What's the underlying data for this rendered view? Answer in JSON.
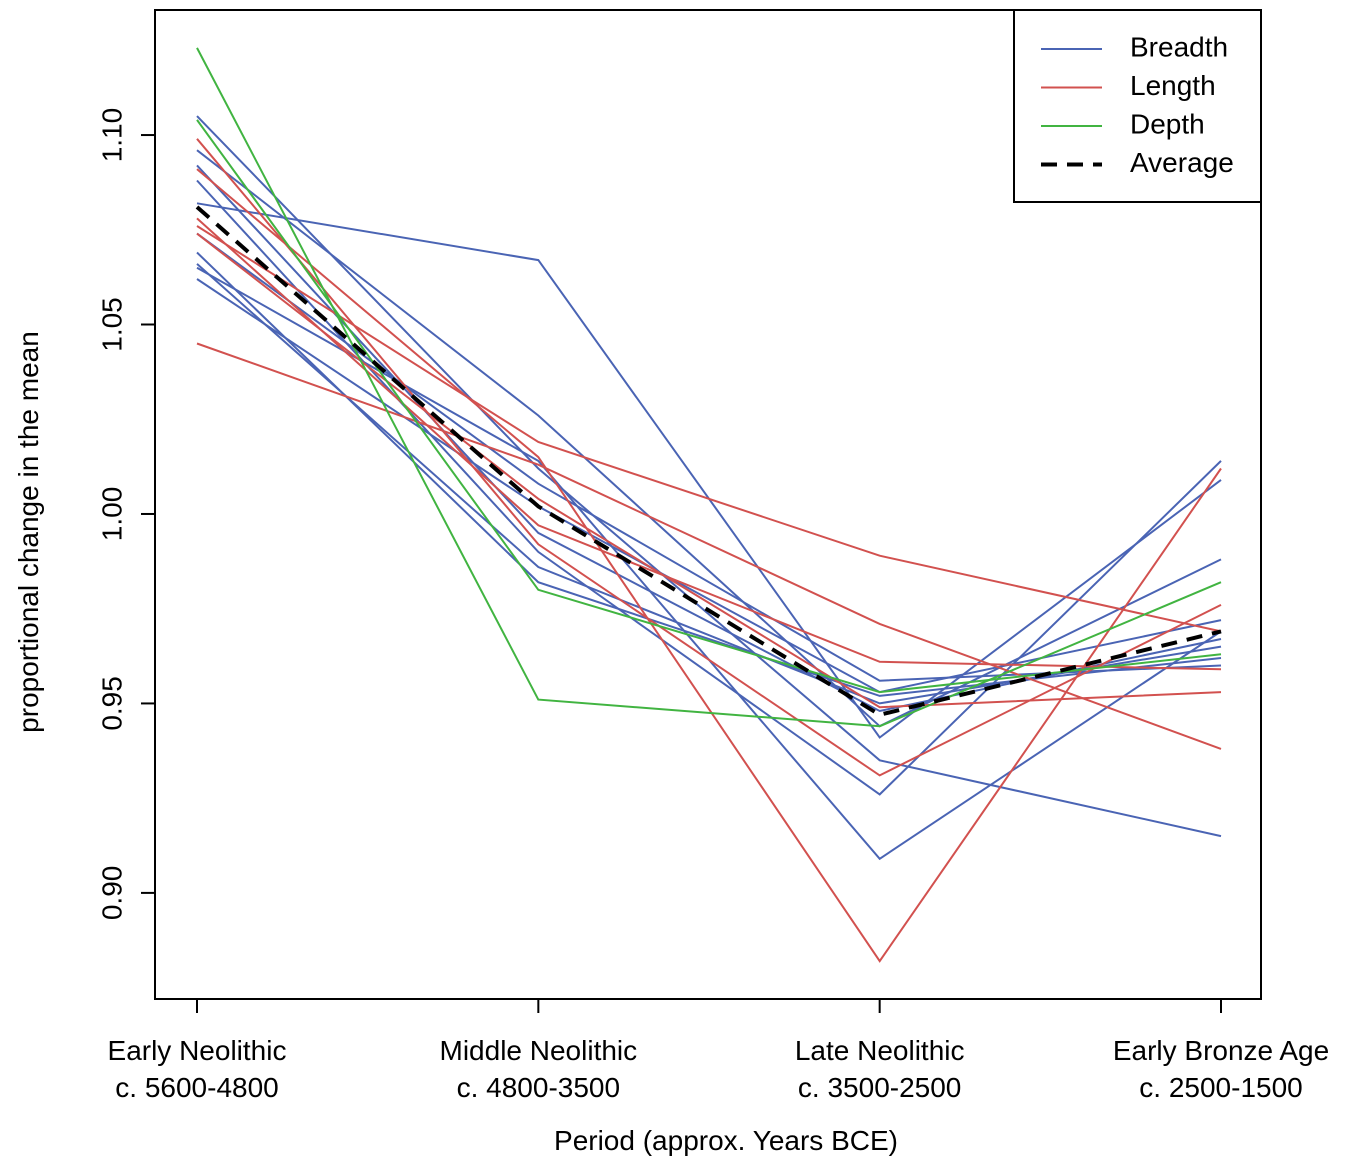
{
  "chart_data": {
    "type": "line",
    "title": "",
    "xlabel": "Period (approx. Years BCE)",
    "ylabel": "proportional change in the mean",
    "categories": [
      [
        "Early Neolithic",
        "c. 5600-4800"
      ],
      [
        "Middle Neolithic",
        "c. 4800-3500"
      ],
      [
        "Late Neolithic",
        "c. 3500-2500"
      ],
      [
        "Early Bronze Age",
        "c. 2500-1500"
      ]
    ],
    "ylim": [
      0.872,
      1.133
    ],
    "yticks": [
      0.9,
      0.95,
      1.0,
      1.05,
      1.1
    ],
    "ytick_labels": [
      "0.90",
      "0.95",
      "1.00",
      "1.05",
      "1.10"
    ],
    "grid": false,
    "legend_position": "top-right",
    "colors": {
      "Breadth": "#4a64b4",
      "Length": "#d2514f",
      "Depth": "#41b441",
      "Average": "#000000"
    },
    "legend": [
      {
        "label": "Breadth",
        "group": "Breadth",
        "dashed": false
      },
      {
        "label": "Length",
        "group": "Length",
        "dashed": false
      },
      {
        "label": "Depth",
        "group": "Depth",
        "dashed": false
      },
      {
        "label": "Average",
        "group": "Average",
        "dashed": true
      }
    ],
    "series": [
      {
        "group": "Breadth",
        "values": [
          1.105,
          1.012,
          0.935,
          0.915
        ]
      },
      {
        "group": "Breadth",
        "values": [
          1.082,
          1.067,
          0.941,
          1.009
        ]
      },
      {
        "group": "Breadth",
        "values": [
          1.096,
          1.026,
          0.944,
          0.988
        ]
      },
      {
        "group": "Breadth",
        "values": [
          1.088,
          0.99,
          0.926,
          1.014
        ]
      },
      {
        "group": "Breadth",
        "values": [
          1.065,
          1.014,
          0.909,
          0.969
        ]
      },
      {
        "group": "Breadth",
        "values": [
          1.074,
          1.008,
          0.956,
          0.96
        ]
      },
      {
        "group": "Breadth",
        "values": [
          1.062,
          1.002,
          0.953,
          0.972
        ]
      },
      {
        "group": "Breadth",
        "values": [
          1.069,
          0.982,
          0.952,
          0.962
        ]
      },
      {
        "group": "Breadth",
        "values": [
          1.066,
          0.986,
          0.95,
          0.965
        ]
      },
      {
        "group": "Breadth",
        "values": [
          1.092,
          0.995,
          0.948,
          0.967
        ]
      },
      {
        "group": "Length",
        "values": [
          1.099,
          0.992,
          0.931,
          0.976
        ]
      },
      {
        "group": "Length",
        "values": [
          1.091,
          1.015,
          0.882,
          1.012
        ]
      },
      {
        "group": "Length",
        "values": [
          1.076,
          1.019,
          0.989,
          0.969
        ]
      },
      {
        "group": "Length",
        "values": [
          1.045,
          1.013,
          0.971,
          0.938
        ]
      },
      {
        "group": "Length",
        "values": [
          1.078,
          0.997,
          0.961,
          0.959
        ]
      },
      {
        "group": "Length",
        "values": [
          1.074,
          1.004,
          0.949,
          0.953
        ]
      },
      {
        "group": "Depth",
        "values": [
          1.123,
          0.951,
          0.944,
          0.982
        ]
      },
      {
        "group": "Depth",
        "values": [
          1.104,
          0.98,
          0.953,
          0.963
        ]
      },
      {
        "group": "Average",
        "values": [
          1.081,
          1.002,
          0.947,
          0.969
        ]
      }
    ]
  }
}
